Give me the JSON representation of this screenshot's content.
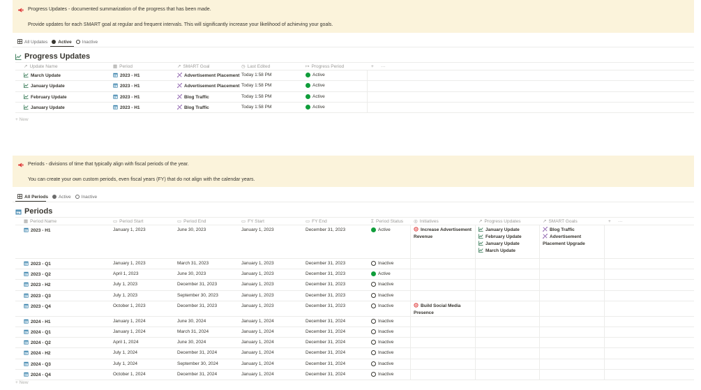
{
  "callout1": {
    "line1": "Progress Updates - documented summarization of the progress that has been made.",
    "line2": "Provide updates for each SMART goal at regular and frequent intervals.  This will significantly increase your likelihood of achieving your goals."
  },
  "tabs1": {
    "all": "All Updates",
    "active": "Active",
    "inactive": "Inactive"
  },
  "progress": {
    "title": "Progress Updates",
    "columns": {
      "name": "Update Name",
      "period": "Period",
      "goal": "SMART Goal",
      "edited": "Last Edited",
      "pperiod": "Progress Period",
      "add": "+",
      "more": "···"
    },
    "rows": [
      {
        "name": "March Update",
        "period": "2023 - H1",
        "goal": "Advertisement Placement",
        "edited": "Today 1:58 PM",
        "status": "Active"
      },
      {
        "name": "January Update",
        "period": "2023 - H1",
        "goal": "Advertisement Placement",
        "edited": "Today 1:58 PM",
        "status": "Active"
      },
      {
        "name": "February Update",
        "period": "2023 - H1",
        "goal": "Blog Traffic",
        "edited": "Today 1:58 PM",
        "status": "Active"
      },
      {
        "name": "January Update",
        "period": "2023 - H1",
        "goal": "Blog Traffic",
        "edited": "Today 1:58 PM",
        "status": "Active"
      }
    ],
    "new_label": "+ New"
  },
  "callout2": {
    "line1": "Periods - divisions of time that typically align with fiscal periods of the year.",
    "line2": "You can create your own custom periods, even fiscal years (FY) that do not align with the calendar years."
  },
  "tabs2": {
    "all": "All Periods",
    "active": "Active",
    "inactive": "Inactive"
  },
  "periods": {
    "title": "Periods",
    "columns": {
      "name": "Period Name",
      "start": "Period Start",
      "end": "Period End",
      "fystart": "FY Start",
      "fyend": "FY End",
      "status": "Period Status",
      "initiatives": "Initiatives",
      "updates": "Progress Updates",
      "goals": "SMART Goals",
      "add": "+",
      "more": "···"
    },
    "rows": [
      {
        "name": "2023 - H1",
        "start": "January 1, 2023",
        "end": "June 30, 2023",
        "fystart": "January 1, 2023",
        "fyend": "December 31, 2023",
        "status": "Active",
        "initiative": [
          "Increase Advertisement",
          "Revenue"
        ],
        "updates": [
          "January Update",
          "February Update",
          "January Update",
          "March Update"
        ],
        "goals": [
          "Blog Traffic",
          "Advertisement",
          "Placement Upgrade"
        ]
      },
      {
        "name": "2023 - Q1",
        "start": "January 1, 2023",
        "end": "March 31, 2023",
        "fystart": "January 1, 2023",
        "fyend": "December 31, 2023",
        "status": "Inactive"
      },
      {
        "name": "2023 - Q2",
        "start": "April 1, 2023",
        "end": "June 30, 2023",
        "fystart": "January 1, 2023",
        "fyend": "December 31, 2023",
        "status": "Active"
      },
      {
        "name": "2023 - H2",
        "start": "July 1, 2023",
        "end": "December 31, 2023",
        "fystart": "January 1, 2023",
        "fyend": "December 31, 2023",
        "status": "Inactive"
      },
      {
        "name": "2023 - Q3",
        "start": "July 1, 2023",
        "end": "September 30, 2023",
        "fystart": "January 1, 2023",
        "fyend": "December 31, 2023",
        "status": "Inactive"
      },
      {
        "name": "2023 - Q4",
        "start": "October 1, 2023",
        "end": "December 31, 2023",
        "fystart": "January 1, 2023",
        "fyend": "December 31, 2023",
        "status": "Inactive",
        "initiative": [
          "Build Social Media",
          "Presence"
        ]
      },
      {
        "name": "2024 - H1",
        "start": "January 1, 2024",
        "end": "June 30, 2024",
        "fystart": "January 1, 2024",
        "fyend": "December 31, 2024",
        "status": "Inactive"
      },
      {
        "name": "2024 - Q1",
        "start": "January 1, 2024",
        "end": "March 31, 2024",
        "fystart": "January 1, 2024",
        "fyend": "December 31, 2024",
        "status": "Inactive"
      },
      {
        "name": "2024 - Q2",
        "start": "April 1, 2024",
        "end": "June 30, 2024",
        "fystart": "January 1, 2024",
        "fyend": "December 31, 2024",
        "status": "Inactive"
      },
      {
        "name": "2024 - H2",
        "start": "July 1, 2024",
        "end": "December 31, 2024",
        "fystart": "January 1, 2024",
        "fyend": "December 31, 2024",
        "status": "Inactive"
      },
      {
        "name": "2024 - Q3",
        "start": "July 1, 2024",
        "end": "September 30, 2024",
        "fystart": "January 1, 2024",
        "fyend": "December 31, 2024",
        "status": "Inactive"
      },
      {
        "name": "2024 - Q4",
        "start": "October 1, 2024",
        "end": "December 31, 2024",
        "fystart": "January 1, 2024",
        "fyend": "December 31, 2024",
        "status": "Inactive"
      }
    ],
    "new_label": "+ New"
  },
  "icons": {
    "megaphone": "megaphone-icon",
    "table": "table-icon",
    "trend": "trend-chart-icon",
    "calendar": "calendar-icon",
    "goal": "target-goal-icon"
  },
  "colors": {
    "callout_bg": "#fbf3db",
    "active_green": "#0f9d3a",
    "trend_green": "#448361",
    "calendar_blue": "#337ea9",
    "goal_purple": "#9065b0",
    "initiative_red": "#e03e3e"
  }
}
